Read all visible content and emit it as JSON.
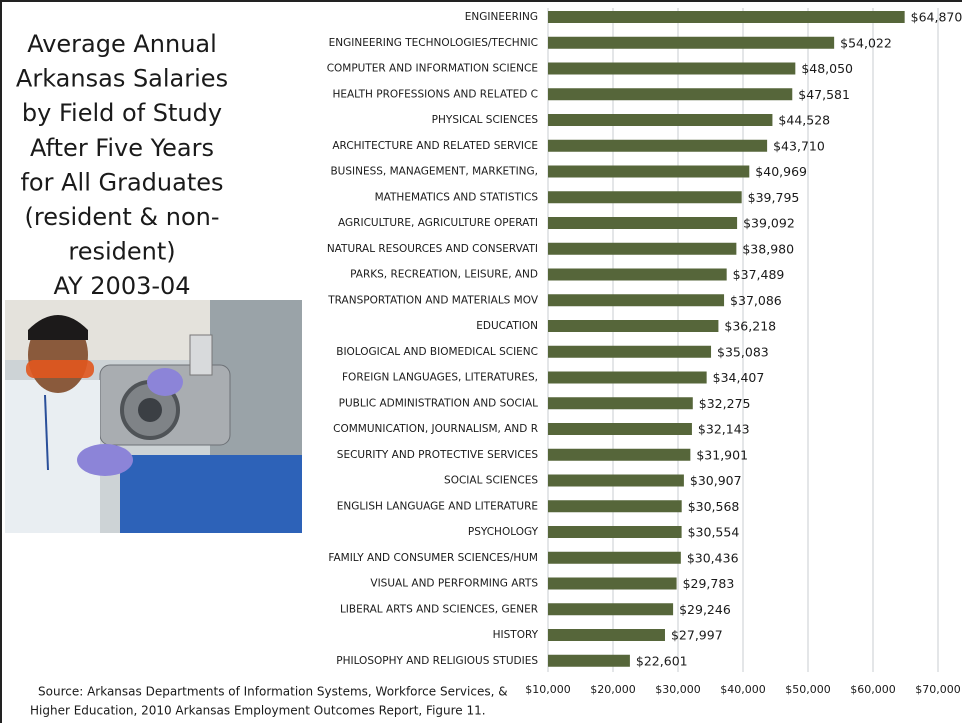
{
  "chart_data": {
    "type": "bar",
    "orientation": "horizontal",
    "title": [
      "Average Annual",
      "Arkansas Salaries",
      "by Field of Study",
      "After Five Years",
      "for All Graduates",
      "(resident & non-",
      "resident)",
      "AY 2003-04"
    ],
    "source": [
      "Source: Arkansas Departments of Information Systems, Workforce Services, &",
      "Higher Education, 2010 Arkansas Employment Outcomes Report, Figure 11."
    ],
    "categories": [
      "ENGINEERING",
      "ENGINEERING TECHNOLOGIES/TECHNIC",
      "COMPUTER AND INFORMATION SCIENCE",
      "HEALTH PROFESSIONS AND RELATED C",
      "PHYSICAL SCIENCES",
      "ARCHITECTURE AND RELATED SERVICE",
      "BUSINESS, MANAGEMENT, MARKETING,",
      "MATHEMATICS AND STATISTICS",
      "AGRICULTURE, AGRICULTURE OPERATI",
      "NATURAL RESOURCES AND CONSERVATI",
      "PARKS, RECREATION, LEISURE, AND",
      "TRANSPORTATION AND MATERIALS MOV",
      "EDUCATION",
      "BIOLOGICAL AND BIOMEDICAL SCIENC",
      "FOREIGN LANGUAGES, LITERATURES,",
      "PUBLIC ADMINISTRATION AND SOCIAL",
      "COMMUNICATION, JOURNALISM, AND R",
      "SECURITY AND PROTECTIVE SERVICES",
      "SOCIAL SCIENCES",
      "ENGLISH LANGUAGE AND LITERATURE",
      "PSYCHOLOGY",
      "FAMILY AND CONSUMER SCIENCES/HUM",
      "VISUAL AND PERFORMING ARTS",
      "LIBERAL ARTS AND SCIENCES, GENER",
      "HISTORY",
      "PHILOSOPHY AND RELIGIOUS STUDIES"
    ],
    "values": [
      64870,
      54022,
      48050,
      47581,
      44528,
      43710,
      40969,
      39795,
      39092,
      38980,
      37489,
      37086,
      36218,
      35083,
      34407,
      32275,
      32143,
      31901,
      30907,
      30568,
      30554,
      30436,
      29783,
      29246,
      27997,
      22601
    ],
    "value_labels": [
      "$64,870",
      "$54,022",
      "$48,050",
      "$47,581",
      "$44,528",
      "$43,710",
      "$40,969",
      "$39,795",
      "$39,092",
      "$38,980",
      "$37,489",
      "$37,086",
      "$36,218",
      "$35,083",
      "$34,407",
      "$32,275",
      "$32,143",
      "$31,901",
      "$30,907",
      "$30,568",
      "$30,554",
      "$30,436",
      "$29,783",
      "$29,246",
      "$27,997",
      "$22,601"
    ],
    "color": "#56663a",
    "xlim": [
      10000,
      70000
    ],
    "xticks": [
      {
        "value": 10000,
        "label": "$10,000"
      },
      {
        "value": 20000,
        "label": "$20,000"
      },
      {
        "value": 30000,
        "label": "$30,000"
      },
      {
        "value": 40000,
        "label": "$40,000"
      },
      {
        "value": 50000,
        "label": "$50,000"
      },
      {
        "value": 60000,
        "label": "$60,000"
      },
      {
        "value": 70000,
        "label": "$70,000"
      }
    ],
    "grid": true
  }
}
